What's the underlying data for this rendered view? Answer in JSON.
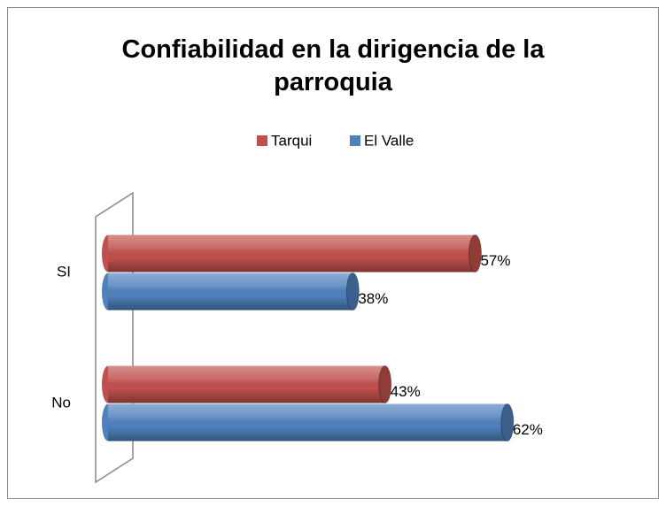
{
  "chart_data": {
    "type": "bar",
    "orientation": "horizontal",
    "title": "Confiabilidad en la dirigencia de la parroquia",
    "categories": [
      "SI",
      "No"
    ],
    "series": [
      {
        "name": "Tarqui",
        "color": "#c0504d",
        "values": [
          57,
          43
        ],
        "value_labels": [
          "57%",
          "43%"
        ]
      },
      {
        "name": "El Valle",
        "color": "#4f81bd",
        "values": [
          38,
          62
        ],
        "value_labels": [
          "38%",
          "62%"
        ]
      }
    ],
    "xlim": [
      0,
      70
    ]
  }
}
